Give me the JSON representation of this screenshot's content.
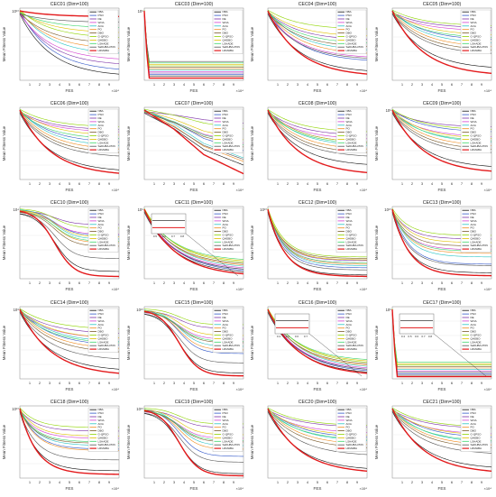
{
  "figure": {
    "legend_labels": [
      "NBA",
      "PSO",
      "DE",
      "WOA",
      "AOA",
      "PO",
      "DBO",
      "G-QPSO",
      "QHDBO",
      "LSHADE",
      "SaDHBA-PDN",
      "LRMHBA"
    ],
    "series_colors": [
      "#111111",
      "#2f55c8",
      "#7b2fa6",
      "#d43fd0",
      "#29c4c4",
      "#f08a1a",
      "#7a5a2a",
      "#8fd400",
      "#e0c000",
      "#3bd56a",
      "#555555",
      "#e31a1c"
    ],
    "xlabel": "FES",
    "ylabel": "Mean Fitness Value",
    "x_tick_labels": [
      "1",
      "2",
      "3",
      "4",
      "5",
      "6",
      "7",
      "8",
      "9"
    ],
    "x_multiplier": "×10⁴"
  },
  "chart_data": [
    {
      "type": "line",
      "title": "CEC01 (Dim=100)",
      "y_exp": "10¹⁰",
      "final": [
        0.05,
        0.12,
        0.2,
        0.27,
        0.35,
        0.42,
        0.5,
        0.58,
        0.65,
        0.72,
        0.8,
        0.88
      ],
      "curve": "slow",
      "inset": false
    },
    {
      "type": "line",
      "title": "CEC03 (Dim=100)",
      "y_exp": "10⁵",
      "final": [
        0.06,
        0.08,
        0.1,
        0.12,
        0.14,
        0.16,
        0.18,
        0.2,
        0.22,
        0.24,
        0.26,
        0.03
      ],
      "curve": "drop",
      "inset": false
    },
    {
      "type": "line",
      "title": "CEC04 (Dim=100)",
      "y_exp": "",
      "final": [
        0.1,
        0.25,
        0.55,
        0.3,
        0.4,
        0.35,
        0.45,
        0.7,
        0.6,
        0.5,
        0.28,
        0.05
      ],
      "curve": "slow",
      "inset": false
    },
    {
      "type": "line",
      "title": "CEC05 (Dim=100)",
      "y_exp": "",
      "final": [
        0.15,
        0.55,
        0.72,
        0.68,
        0.5,
        0.45,
        0.4,
        0.75,
        0.62,
        0.58,
        0.35,
        0.06
      ],
      "curve": "slow",
      "inset": false
    },
    {
      "type": "line",
      "title": "CEC06 (Dim=100)",
      "y_exp": "",
      "final": [
        0.1,
        0.5,
        0.68,
        0.65,
        0.45,
        0.4,
        0.35,
        0.72,
        0.6,
        0.55,
        0.3,
        0.05
      ],
      "curve": "slow",
      "inset": false
    },
    {
      "type": "line",
      "title": "CEC07 (Dim=100)",
      "y_exp": "",
      "final": [
        0.2,
        0.4,
        0.78,
        0.5,
        0.3,
        0.25,
        0.45,
        0.7,
        0.55,
        0.48,
        0.28,
        0.08
      ],
      "curve": "step",
      "inset": false
    },
    {
      "type": "line",
      "title": "CEC08 (Dim=100)",
      "y_exp": "",
      "final": [
        0.18,
        0.5,
        0.6,
        0.55,
        0.45,
        0.4,
        0.35,
        0.65,
        0.5,
        0.48,
        0.3,
        0.06
      ],
      "curve": "slow",
      "inset": false
    },
    {
      "type": "line",
      "title": "CEC09 (Dim=100)",
      "y_exp": "10⁵",
      "final": [
        0.15,
        0.65,
        0.72,
        0.58,
        0.5,
        0.45,
        0.4,
        0.68,
        0.55,
        0.52,
        0.35,
        0.08
      ],
      "curve": "slow",
      "inset": false
    },
    {
      "type": "line",
      "title": "CEC10 (Dim=100)",
      "y_exp": "10⁴",
      "final": [
        0.1,
        0.6,
        0.75,
        0.62,
        0.55,
        0.5,
        0.45,
        0.7,
        0.58,
        0.52,
        0.28,
        0.03
      ],
      "curve": "sigmoid",
      "inset": false
    },
    {
      "type": "line",
      "title": "CEC11 (Dim=100)",
      "y_exp": "10⁵",
      "final": [
        0.06,
        0.08,
        0.1,
        0.12,
        0.14,
        0.16,
        0.18,
        0.2,
        0.22,
        0.24,
        0.1,
        0.03
      ],
      "curve": "slow",
      "inset": true,
      "inset_ticks": [
        "0.5",
        "0.6",
        "0.7",
        "0.8"
      ]
    },
    {
      "type": "line",
      "title": "CEC12 (Dim=100)",
      "y_exp": "10¹⁰",
      "final": [
        0.05,
        0.15,
        0.25,
        0.22,
        0.18,
        0.2,
        0.28,
        0.3,
        0.26,
        0.22,
        0.12,
        0.03
      ],
      "curve": "fast",
      "inset": false
    },
    {
      "type": "line",
      "title": "CEC13 (Dim=100)",
      "y_exp": "10¹⁰",
      "final": [
        0.08,
        0.2,
        0.55,
        0.4,
        0.3,
        0.35,
        0.45,
        0.6,
        0.5,
        0.38,
        0.18,
        0.04
      ],
      "curve": "fast",
      "inset": false
    },
    {
      "type": "line",
      "title": "CEC14 (Dim=100)",
      "y_exp": "10⁸",
      "final": [
        0.1,
        0.45,
        0.62,
        0.55,
        0.5,
        0.4,
        0.35,
        0.68,
        0.55,
        0.48,
        0.25,
        0.04
      ],
      "curve": "slow",
      "inset": false
    },
    {
      "type": "line",
      "title": "CEC15 (Dim=100)",
      "y_exp": "10¹⁰",
      "final": [
        0.08,
        0.35,
        0.7,
        0.55,
        0.45,
        0.4,
        0.5,
        0.75,
        0.6,
        0.52,
        0.22,
        0.04
      ],
      "curve": "sigmoid",
      "inset": false
    },
    {
      "type": "line",
      "title": "CEC16 (Dim=100)",
      "y_exp": "",
      "final": [
        0.06,
        0.08,
        0.1,
        0.12,
        0.14,
        0.16,
        0.18,
        0.2,
        0.22,
        0.24,
        0.1,
        0.04
      ],
      "curve": "slow",
      "inset": true,
      "inset_ticks": [
        "0.4",
        "0.5",
        "0.6",
        "0.7"
      ]
    },
    {
      "type": "line",
      "title": "CEC17 (Dim=100)",
      "y_exp": "10⁵",
      "final": [
        0.05,
        0.07,
        0.09,
        0.11,
        0.13,
        0.15,
        0.17,
        0.19,
        0.21,
        0.23,
        0.09,
        0.03
      ],
      "curve": "drop",
      "inset": true,
      "inset_ticks": [
        "0.4",
        "0.5",
        "0.6",
        "0.7",
        "0.8"
      ]
    },
    {
      "type": "line",
      "title": "CEC18 (Dim=100)",
      "y_exp": "10¹⁰",
      "final": [
        0.1,
        0.4,
        0.65,
        0.55,
        0.45,
        0.38,
        0.48,
        0.7,
        0.58,
        0.5,
        0.25,
        0.05
      ],
      "curve": "fast",
      "inset": false
    },
    {
      "type": "line",
      "title": "CEC19 (Dim=100)",
      "y_exp": "10¹⁰",
      "final": [
        0.06,
        0.3,
        0.7,
        0.55,
        0.45,
        0.4,
        0.5,
        0.75,
        0.6,
        0.52,
        0.22,
        0.03
      ],
      "curve": "sigmoid",
      "inset": false
    },
    {
      "type": "line",
      "title": "CEC20 (Dim=100)",
      "y_exp": "",
      "final": [
        0.1,
        0.55,
        0.7,
        0.62,
        0.5,
        0.45,
        0.4,
        0.72,
        0.58,
        0.52,
        0.3,
        0.06
      ],
      "curve": "slow",
      "inset": false
    },
    {
      "type": "line",
      "title": "CEC21 (Dim=100)",
      "y_exp": "",
      "final": [
        0.12,
        0.55,
        0.68,
        0.6,
        0.48,
        0.44,
        0.4,
        0.7,
        0.58,
        0.5,
        0.32,
        0.06
      ],
      "curve": "slow",
      "inset": false
    }
  ]
}
